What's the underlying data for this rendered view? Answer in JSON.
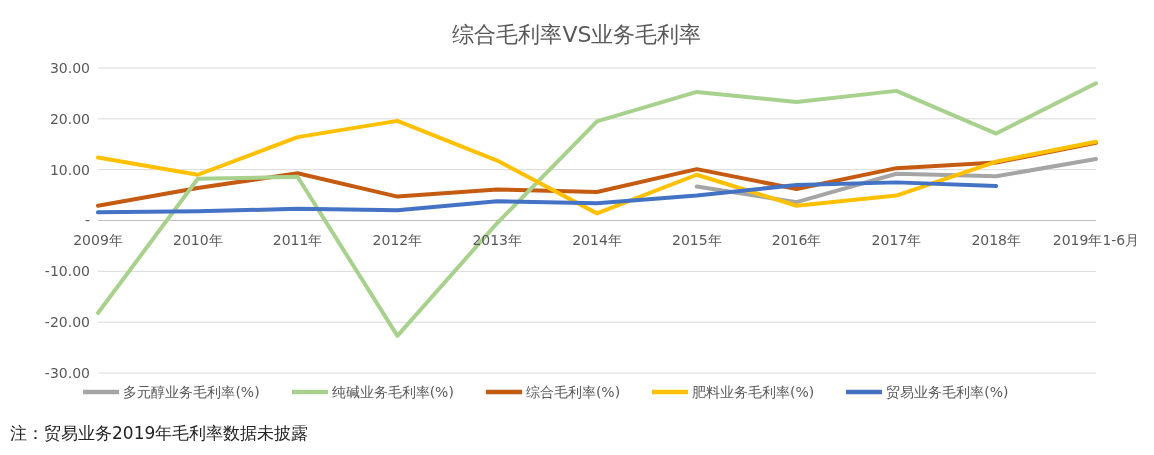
{
  "chart_data": {
    "type": "line",
    "title": "综合毛利率VS业务毛利率",
    "categories": [
      "2009年",
      "2010年",
      "2011年",
      "2012年",
      "2013年",
      "2014年",
      "2015年",
      "2016年",
      "2017年",
      "2018年",
      "2019年1-6月"
    ],
    "series": [
      {
        "name": "综合毛利率(%)",
        "color": "#c55a11",
        "values": [
          2.9,
          6.4,
          9.3,
          4.7,
          6.1,
          5.6,
          10.1,
          6.2,
          10.3,
          11.4,
          15.3
        ]
      },
      {
        "name": "纯碱业务毛利率(%)",
        "color": "#a9d18e",
        "values": [
          -18.2,
          8.2,
          8.6,
          -22.7,
          -0.5,
          19.5,
          25.3,
          23.3,
          25.5,
          17.1,
          27.0
        ]
      },
      {
        "name": "多元醇业务毛利率(%)",
        "color": "#a5a5a5",
        "values": [
          null,
          null,
          null,
          null,
          null,
          null,
          6.7,
          3.6,
          9.2,
          8.7,
          12.1
        ]
      },
      {
        "name": "肥料业务毛利率(%)",
        "color": "#ffc000",
        "values": [
          12.4,
          9.0,
          16.4,
          19.6,
          11.8,
          1.4,
          9.0,
          2.9,
          4.9,
          11.6,
          15.5
        ]
      },
      {
        "name": "贸易业务毛利率(%)",
        "color": "#4472c4",
        "values": [
          1.6,
          1.8,
          2.3,
          2.0,
          3.8,
          3.4,
          4.9,
          7.0,
          7.5,
          6.8,
          null
        ]
      }
    ],
    "ylim": [
      -30,
      30
    ],
    "yticks": [
      {
        "value": -30,
        "label": "-30.00"
      },
      {
        "value": -20,
        "label": "-20.00"
      },
      {
        "value": -10,
        "label": "-10.00"
      },
      {
        "value": 0,
        "label": "-"
      },
      {
        "value": 10,
        "label": "10.00"
      },
      {
        "value": 20,
        "label": "20.00"
      },
      {
        "value": 30,
        "label": "30.00"
      }
    ],
    "grid": "y",
    "legend": "bottom",
    "marker": "none",
    "line_style": "solid",
    "annotations": [
      "注：贸易业务2019年毛利率数据未披露"
    ]
  }
}
